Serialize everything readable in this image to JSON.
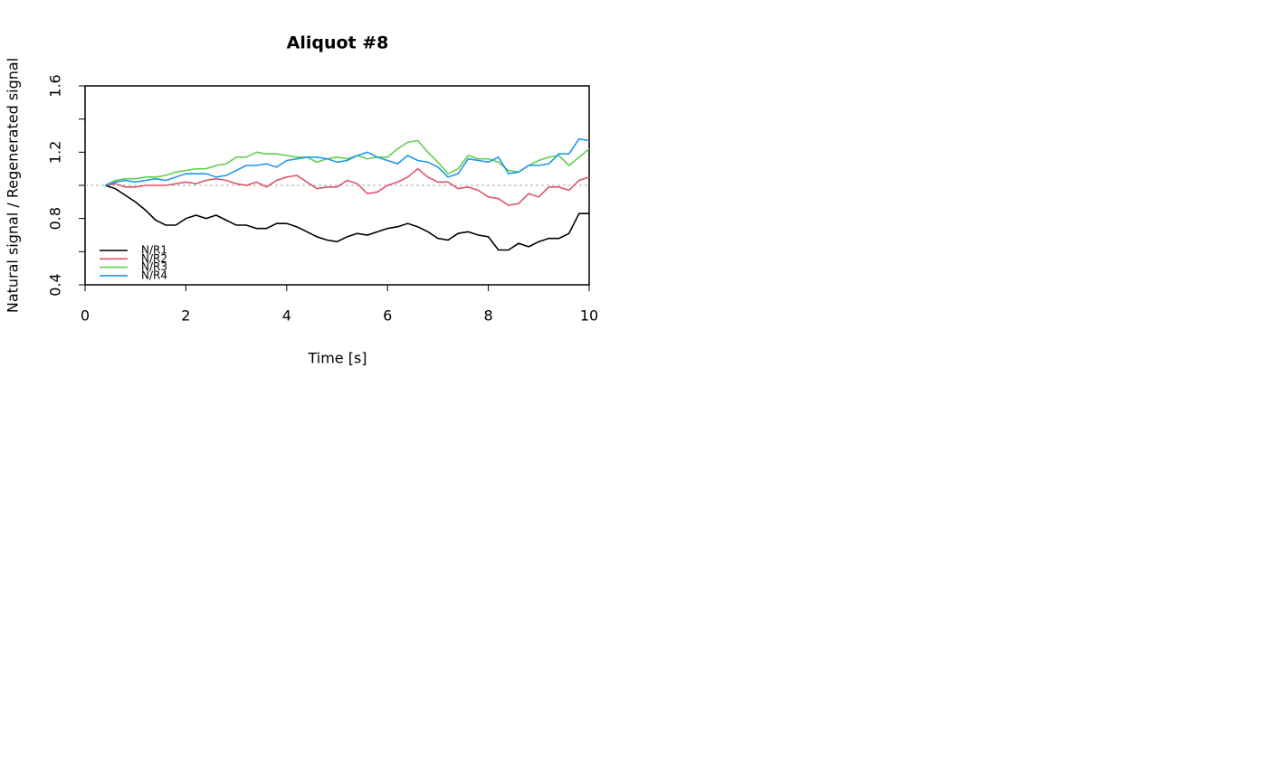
{
  "chart_data": {
    "type": "line",
    "title": "Aliquot #8",
    "xlabel": "Time [s]",
    "ylabel": "Natural signal / Regenerated signal",
    "x": [
      0.4,
      0.6,
      0.8,
      1.0,
      1.2,
      1.4,
      1.6,
      1.8,
      2.0,
      2.2,
      2.4,
      2.6,
      2.8,
      3.0,
      3.2,
      3.4,
      3.6,
      3.8,
      4.0,
      4.2,
      4.4,
      4.6,
      4.8,
      5.0,
      5.2,
      5.4,
      5.6,
      5.8,
      6.0,
      6.2,
      6.4,
      6.6,
      6.8,
      7.0,
      7.2,
      7.4,
      7.6,
      7.8,
      8.0,
      8.2,
      8.4,
      8.6,
      8.8,
      9.0,
      9.2,
      9.4,
      9.6,
      9.8,
      10.0
    ],
    "series": [
      {
        "name": "N/R1",
        "color": "#000000",
        "values": [
          1.0,
          0.98,
          0.94,
          0.9,
          0.85,
          0.79,
          0.76,
          0.76,
          0.8,
          0.82,
          0.8,
          0.82,
          0.79,
          0.76,
          0.76,
          0.74,
          0.74,
          0.77,
          0.77,
          0.75,
          0.72,
          0.69,
          0.67,
          0.66,
          0.69,
          0.71,
          0.7,
          0.72,
          0.74,
          0.75,
          0.77,
          0.75,
          0.72,
          0.68,
          0.67,
          0.71,
          0.72,
          0.7,
          0.69,
          0.61,
          0.61,
          0.65,
          0.63,
          0.66,
          0.68,
          0.68,
          0.71,
          0.83,
          0.83
        ]
      },
      {
        "name": "N/R2",
        "color": "#DF536B",
        "values": [
          1.0,
          1.01,
          0.99,
          0.99,
          1.0,
          1.0,
          1.0,
          1.01,
          1.02,
          1.01,
          1.03,
          1.04,
          1.03,
          1.01,
          1.0,
          1.02,
          0.99,
          1.03,
          1.05,
          1.06,
          1.02,
          0.98,
          0.99,
          0.99,
          1.03,
          1.01,
          0.95,
          0.96,
          1.0,
          1.02,
          1.05,
          1.1,
          1.05,
          1.02,
          1.02,
          0.98,
          0.99,
          0.97,
          0.93,
          0.92,
          0.88,
          0.89,
          0.95,
          0.93,
          0.99,
          0.99,
          0.97,
          1.03,
          1.05
        ]
      },
      {
        "name": "N/R3",
        "color": "#61D04F",
        "values": [
          1.0,
          1.03,
          1.04,
          1.04,
          1.05,
          1.05,
          1.06,
          1.08,
          1.09,
          1.1,
          1.1,
          1.12,
          1.13,
          1.17,
          1.17,
          1.2,
          1.19,
          1.19,
          1.18,
          1.17,
          1.17,
          1.14,
          1.16,
          1.17,
          1.16,
          1.18,
          1.16,
          1.17,
          1.17,
          1.22,
          1.26,
          1.27,
          1.2,
          1.14,
          1.07,
          1.1,
          1.18,
          1.16,
          1.16,
          1.14,
          1.09,
          1.08,
          1.12,
          1.15,
          1.17,
          1.18,
          1.12,
          1.17,
          1.22
        ]
      },
      {
        "name": "N/R4",
        "color": "#2297E6",
        "values": [
          1.0,
          1.02,
          1.03,
          1.02,
          1.03,
          1.04,
          1.03,
          1.05,
          1.07,
          1.07,
          1.07,
          1.05,
          1.06,
          1.09,
          1.12,
          1.12,
          1.13,
          1.11,
          1.15,
          1.16,
          1.17,
          1.17,
          1.16,
          1.14,
          1.15,
          1.18,
          1.2,
          1.17,
          1.15,
          1.13,
          1.18,
          1.15,
          1.14,
          1.11,
          1.05,
          1.07,
          1.16,
          1.15,
          1.14,
          1.17,
          1.07,
          1.08,
          1.12,
          1.12,
          1.13,
          1.19,
          1.19,
          1.28,
          1.27
        ]
      }
    ],
    "xlim": [
      0,
      10
    ],
    "xticks": [
      0,
      2,
      4,
      6,
      8,
      10
    ],
    "ylim": [
      0.4,
      1.6
    ],
    "yticks": [
      0.4,
      0.8,
      1.2,
      1.6
    ],
    "yminorticks": [
      0.6,
      1.0,
      1.4
    ],
    "hline": 1.0,
    "hline_color": "#aaaaaa",
    "legend": "bottom-left"
  }
}
